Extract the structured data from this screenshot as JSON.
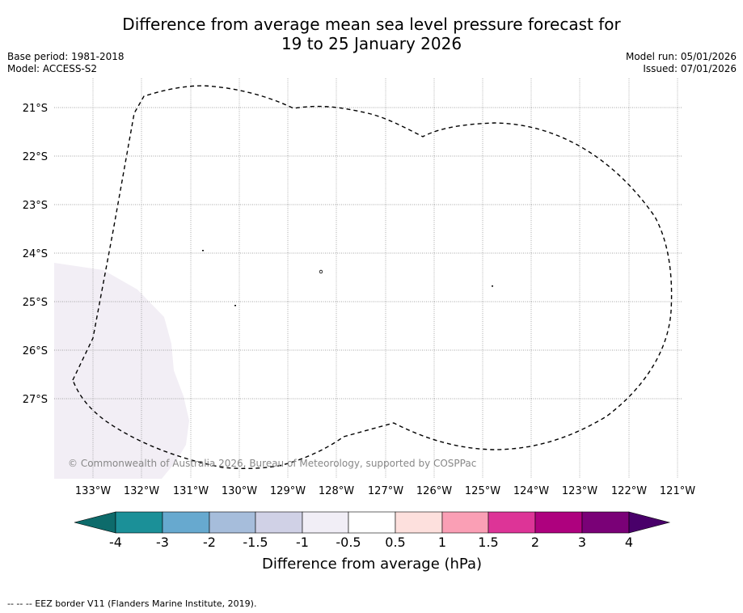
{
  "title": {
    "line1": "Difference from average mean sea level pressure forecast for",
    "line2": "19 to 25 January 2026"
  },
  "meta": {
    "base_period": "Base period: 1981-2018",
    "model": "Model: ACCESS-S2",
    "model_run": "Model run: 05/01/2026",
    "issued": "Issued: 07/01/2026"
  },
  "map": {
    "lon_labels": [
      "133°W",
      "132°W",
      "131°W",
      "130°W",
      "129°W",
      "128°W",
      "127°W",
      "126°W",
      "125°W",
      "124°W",
      "123°W",
      "122°W",
      "121°W"
    ],
    "lat_labels": [
      "21°S",
      "22°S",
      "23°S",
      "24°S",
      "25°S",
      "26°S",
      "27°S"
    ],
    "copyright": "© Commonwealth of Australia 2026, Bureau of Meteorology, supported by COSPPac",
    "anomaly_fill_color": "#f2eef5",
    "eez_line_color": "#000000"
  },
  "legend": {
    "tick_labels": [
      "-4",
      "-3",
      "-2",
      "-1.5",
      "-1",
      "-0.5",
      "0.5",
      "1",
      "1.5",
      "2",
      "3",
      "4"
    ],
    "colors": [
      "#0d6b6b",
      "#1b9098",
      "#67a9cf",
      "#a6bddb",
      "#d0d1e6",
      "#f1eef6",
      "#ffffff",
      "#fde0dd",
      "#fa9fb5",
      "#dd3497",
      "#ae017e",
      "#7a0177",
      "#49006a"
    ],
    "label": "Difference from average (hPa)"
  },
  "footer": {
    "text": "--  --  -- EEZ border V11 (Flanders Marine Institute, 2019)."
  }
}
